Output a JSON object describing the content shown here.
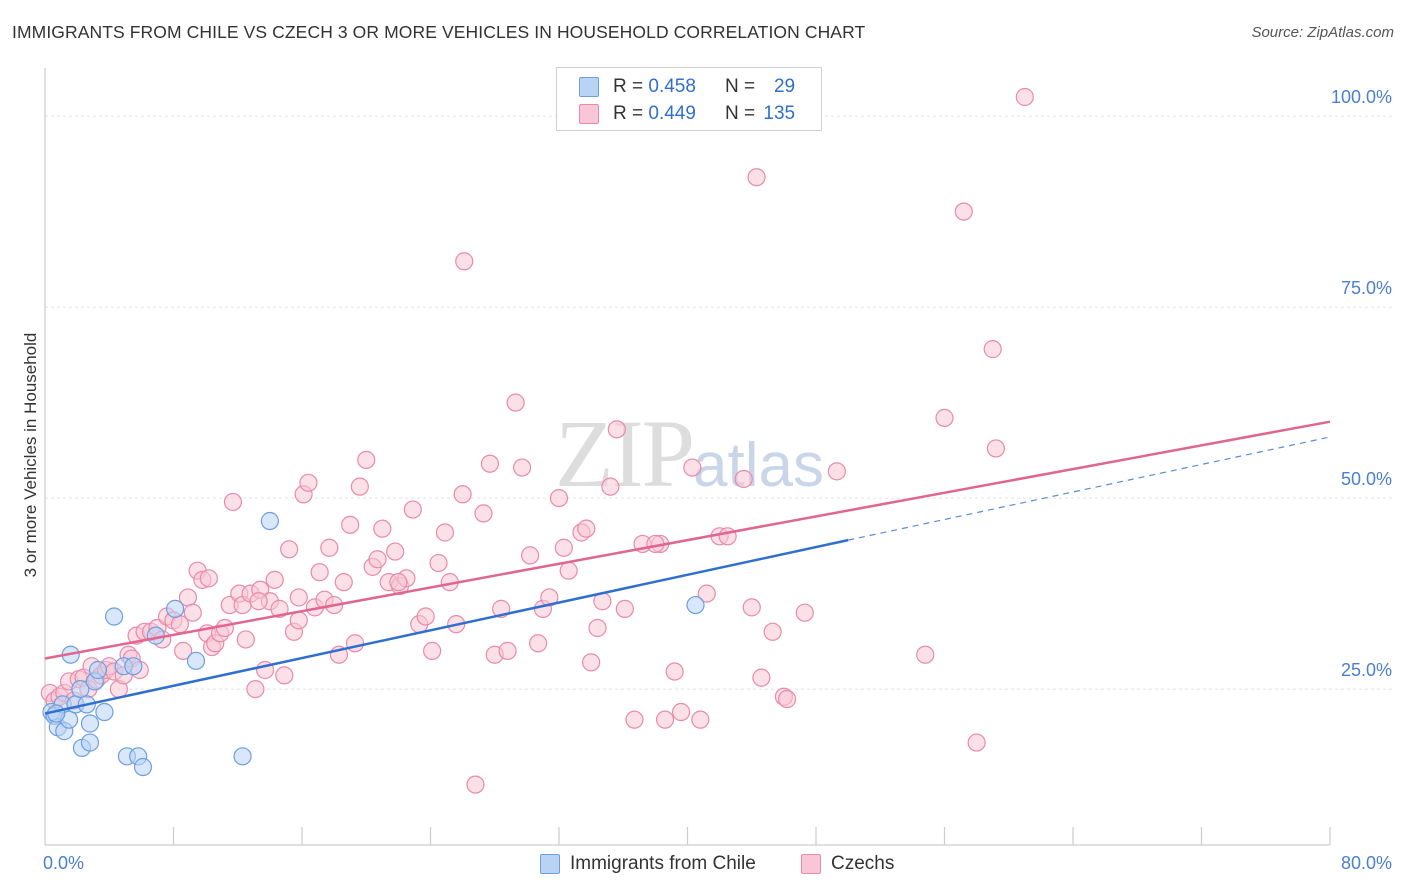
{
  "title": "IMMIGRANTS FROM CHILE VS CZECH 3 OR MORE VEHICLES IN HOUSEHOLD CORRELATION CHART",
  "source": "Source: ZipAtlas.com",
  "watermark": {
    "zip": "ZIP",
    "atlas": "atlas"
  },
  "legend": {
    "rows": [
      {
        "r_label": "R =",
        "r_value": "0.458",
        "n_label": "N =",
        "n_value": "29",
        "color_fill": "#b9d3f5",
        "color_stroke": "#6d9fe0"
      },
      {
        "r_label": "R =",
        "r_value": "0.449",
        "n_label": "N =",
        "n_value": "135",
        "color_fill": "#f8c6d6",
        "color_stroke": "#e98aaa"
      }
    ]
  },
  "bottom_legend": [
    {
      "label": "Immigrants from Chile",
      "color_fill": "#b9d3f5",
      "color_stroke": "#6d9fe0"
    },
    {
      "label": "Czechs",
      "color_fill": "#f8c6d6",
      "color_stroke": "#e98aaa"
    }
  ],
  "chart_data": {
    "type": "scatter",
    "title": "IMMIGRANTS FROM CHILE VS CZECH 3 OR MORE VEHICLES IN HOUSEHOLD CORRELATION CHART",
    "xlabel": "",
    "ylabel": "3 or more Vehicles in Household",
    "xlim": [
      0,
      80
    ],
    "ylim": [
      0,
      102
    ],
    "x_tick_labels": [
      {
        "value": 0,
        "label": "0.0%"
      },
      {
        "value": 80,
        "label": "80.0%"
      }
    ],
    "x_minor_ticks": [
      8,
      16,
      24,
      32,
      40,
      48,
      56,
      64,
      72,
      80
    ],
    "y_ticks": [
      {
        "value": 25,
        "label": "25.0%"
      },
      {
        "value": 50,
        "label": "50.0%"
      },
      {
        "value": 75,
        "label": "75.0%"
      },
      {
        "value": 100,
        "label": "100.0%"
      }
    ],
    "gridlines": [
      22.5,
      47.5,
      72.5,
      97.5
    ],
    "series": [
      {
        "name": "Immigrants from Chile",
        "color_fill": "#b9d3f5",
        "color_stroke": "#6d9fe0",
        "line_color": "#2e6fcf",
        "trend": {
          "x0": 0,
          "y0": 19.3,
          "x1": 50,
          "y1": 42.0,
          "dash_to_x": 80,
          "dash_to_y": 55.5
        },
        "points": [
          [
            0.4,
            19.5
          ],
          [
            0.6,
            19.0
          ],
          [
            0.8,
            17.5
          ],
          [
            1.1,
            20.5
          ],
          [
            1.2,
            17.0
          ],
          [
            1.5,
            18.5
          ],
          [
            1.6,
            27.0
          ],
          [
            1.9,
            20.5
          ],
          [
            2.2,
            22.5
          ],
          [
            2.3,
            14.8
          ],
          [
            2.6,
            20.5
          ],
          [
            2.8,
            18.0
          ],
          [
            2.8,
            15.5
          ],
          [
            3.1,
            23.5
          ],
          [
            3.3,
            25.0
          ],
          [
            3.7,
            19.5
          ],
          [
            4.3,
            32.0
          ],
          [
            4.9,
            25.5
          ],
          [
            5.1,
            13.7
          ],
          [
            5.5,
            25.5
          ],
          [
            5.8,
            13.7
          ],
          [
            6.1,
            12.3
          ],
          [
            6.9,
            29.5
          ],
          [
            8.1,
            33.0
          ],
          [
            9.4,
            26.2
          ],
          [
            12.3,
            13.7
          ],
          [
            14.0,
            44.5
          ],
          [
            40.5,
            33.5
          ],
          [
            0.7,
            19.3
          ]
        ]
      },
      {
        "name": "Czechs",
        "color_fill": "#f8c6d6",
        "color_stroke": "#e98aaa",
        "line_color": "#e0658f",
        "trend": {
          "x0": 0,
          "y0": 26.5,
          "x1": 80,
          "y1": 57.5
        },
        "points": [
          [
            0.3,
            22.0
          ],
          [
            0.6,
            21.0
          ],
          [
            0.9,
            21.5
          ],
          [
            1.2,
            22.0
          ],
          [
            1.5,
            23.5
          ],
          [
            1.8,
            21.0
          ],
          [
            2.1,
            23.8
          ],
          [
            2.4,
            24.0
          ],
          [
            2.7,
            22.5
          ],
          [
            2.9,
            25.5
          ],
          [
            3.2,
            23.7
          ],
          [
            3.5,
            24.3
          ],
          [
            3.8,
            25.0
          ],
          [
            4.0,
            25.5
          ],
          [
            4.3,
            24.8
          ],
          [
            4.6,
            22.5
          ],
          [
            4.9,
            24.3
          ],
          [
            5.2,
            27.0
          ],
          [
            5.4,
            26.5
          ],
          [
            5.7,
            29.5
          ],
          [
            5.9,
            25.0
          ],
          [
            6.2,
            30.0
          ],
          [
            6.6,
            30.0
          ],
          [
            7.0,
            30.5
          ],
          [
            7.3,
            29.0
          ],
          [
            7.6,
            32.0
          ],
          [
            8.0,
            31.5
          ],
          [
            8.4,
            31.0
          ],
          [
            8.6,
            27.5
          ],
          [
            8.9,
            34.5
          ],
          [
            9.2,
            32.5
          ],
          [
            9.5,
            38.0
          ],
          [
            9.8,
            36.8
          ],
          [
            10.1,
            29.8
          ],
          [
            10.4,
            28.0
          ],
          [
            10.6,
            28.5
          ],
          [
            10.9,
            29.8
          ],
          [
            11.2,
            30.5
          ],
          [
            11.5,
            33.5
          ],
          [
            11.7,
            47.0
          ],
          [
            12.1,
            35.0
          ],
          [
            12.3,
            33.5
          ],
          [
            12.5,
            29.0
          ],
          [
            12.8,
            35.0
          ],
          [
            13.1,
            22.5
          ],
          [
            13.4,
            35.5
          ],
          [
            13.7,
            25.0
          ],
          [
            14.0,
            34.0
          ],
          [
            14.3,
            36.8
          ],
          [
            14.6,
            33.0
          ],
          [
            14.9,
            24.3
          ],
          [
            15.2,
            40.8
          ],
          [
            15.5,
            30.0
          ],
          [
            15.8,
            31.5
          ],
          [
            16.1,
            48.0
          ],
          [
            16.4,
            49.5
          ],
          [
            16.8,
            33.2
          ],
          [
            17.1,
            37.8
          ],
          [
            17.4,
            34.2
          ],
          [
            17.7,
            41.0
          ],
          [
            18.0,
            33.5
          ],
          [
            18.3,
            27.0
          ],
          [
            18.6,
            36.5
          ],
          [
            19.0,
            44.0
          ],
          [
            19.3,
            28.5
          ],
          [
            19.6,
            49.0
          ],
          [
            20.0,
            52.5
          ],
          [
            20.4,
            38.5
          ],
          [
            20.7,
            39.5
          ],
          [
            21.0,
            43.5
          ],
          [
            21.4,
            36.5
          ],
          [
            21.8,
            40.5
          ],
          [
            22.1,
            36.0
          ],
          [
            22.5,
            37.0
          ],
          [
            22.9,
            46.0
          ],
          [
            23.3,
            31.0
          ],
          [
            23.7,
            32.0
          ],
          [
            24.1,
            27.5
          ],
          [
            24.5,
            39.0
          ],
          [
            24.9,
            43.0
          ],
          [
            25.2,
            36.5
          ],
          [
            25.6,
            31.0
          ],
          [
            26.0,
            48.0
          ],
          [
            26.8,
            10.0
          ],
          [
            27.3,
            45.5
          ],
          [
            27.7,
            52.0
          ],
          [
            28.0,
            27.0
          ],
          [
            28.4,
            33.0
          ],
          [
            28.8,
            27.5
          ],
          [
            29.3,
            60.0
          ],
          [
            29.7,
            51.5
          ],
          [
            30.2,
            40.0
          ],
          [
            30.7,
            28.5
          ],
          [
            31.0,
            33.0
          ],
          [
            31.4,
            34.5
          ],
          [
            32.0,
            47.5
          ],
          [
            32.3,
            41.0
          ],
          [
            32.6,
            38.0
          ],
          [
            33.4,
            43.0
          ],
          [
            33.7,
            43.5
          ],
          [
            34.0,
            26.0
          ],
          [
            34.4,
            30.5
          ],
          [
            34.7,
            34.0
          ],
          [
            35.2,
            49.0
          ],
          [
            35.6,
            56.5
          ],
          [
            36.1,
            33.0
          ],
          [
            36.7,
            18.5
          ],
          [
            37.2,
            41.5
          ],
          [
            38.3,
            41.5
          ],
          [
            38.6,
            18.5
          ],
          [
            39.2,
            24.8
          ],
          [
            39.6,
            19.5
          ],
          [
            40.3,
            51.5
          ],
          [
            40.8,
            18.5
          ],
          [
            41.2,
            35.0
          ],
          [
            42.0,
            42.5
          ],
          [
            43.5,
            50.0
          ],
          [
            44.0,
            33.2
          ],
          [
            44.6,
            24.0
          ],
          [
            45.3,
            30.0
          ],
          [
            46.0,
            21.5
          ],
          [
            46.2,
            21.2
          ],
          [
            47.3,
            32.5
          ],
          [
            49.3,
            51.0
          ],
          [
            54.8,
            27.0
          ],
          [
            56.0,
            58.0
          ],
          [
            58.0,
            15.5
          ],
          [
            59.0,
            67.0
          ],
          [
            59.2,
            54.0
          ],
          [
            26.1,
            78.5
          ],
          [
            44.3,
            89.5
          ],
          [
            57.2,
            85.0
          ],
          [
            61.0,
            100.0
          ],
          [
            42.5,
            42.5
          ],
          [
            38.0,
            41.5
          ],
          [
            22.0,
            36.5
          ],
          [
            15.8,
            34.5
          ],
          [
            13.3,
            34.0
          ],
          [
            10.2,
            37.0
          ]
        ]
      }
    ]
  }
}
